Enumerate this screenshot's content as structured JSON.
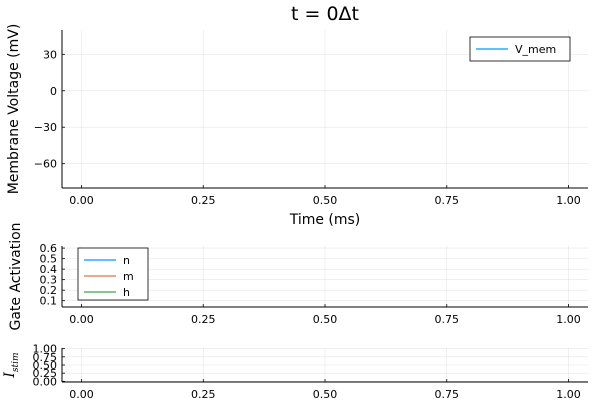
{
  "chart_data": [
    {
      "type": "line",
      "title": "t = 0Δt",
      "xlabel": "Time (ms)",
      "ylabel": "Membrane Voltage (mV)",
      "xlim": [
        -0.04,
        1.04
      ],
      "ylim": [
        -80,
        50
      ],
      "xticks": [
        0.0,
        0.25,
        0.5,
        0.75,
        1.0
      ],
      "xtick_labels": [
        "0.00",
        "0.25",
        "0.50",
        "0.75",
        "1.00"
      ],
      "yticks": [
        30,
        0,
        -30,
        -60
      ],
      "ytick_labels": [
        "30",
        "0",
        "−30",
        "−60"
      ],
      "grid": true,
      "legend_position": "top-right",
      "series": [
        {
          "name": "V_mem",
          "color": "#009af9",
          "x": [],
          "y": []
        }
      ]
    },
    {
      "type": "line",
      "title": "",
      "xlabel": "",
      "ylabel": "Gate Activation",
      "xlim": [
        -0.04,
        1.04
      ],
      "ylim": [
        0.04,
        0.62
      ],
      "xticks": [
        0.0,
        0.25,
        0.5,
        0.75,
        1.0
      ],
      "xtick_labels": [
        "0.00",
        "0.25",
        "0.50",
        "0.75",
        "1.00"
      ],
      "yticks": [
        0.6,
        0.5,
        0.4,
        0.3,
        0.2,
        0.1
      ],
      "ytick_labels": [
        "0.6",
        "0.5",
        "0.4",
        "0.3",
        "0.2",
        "0.1"
      ],
      "grid": true,
      "legend_position": "top-left",
      "series": [
        {
          "name": "n",
          "color": "#009af9",
          "x": [],
          "y": []
        },
        {
          "name": "m",
          "color": "#e26f46",
          "x": [],
          "y": []
        },
        {
          "name": "h",
          "color": "#3da44d",
          "x": [],
          "y": []
        }
      ]
    },
    {
      "type": "line",
      "title": "",
      "xlabel": "",
      "ylabel": "I",
      "ylabel_subscript": "stim",
      "xlim": [
        -0.04,
        1.04
      ],
      "ylim": [
        -0.02,
        1.02
      ],
      "xticks": [
        0.0,
        0.25,
        0.5,
        0.75,
        1.0
      ],
      "xtick_labels": [
        "0.00",
        "0.25",
        "0.50",
        "0.75",
        "1.00"
      ],
      "yticks": [
        1.0,
        0.75,
        0.5,
        0.25,
        0.0
      ],
      "ytick_labels": [
        "1.00",
        "0.75",
        "0.50",
        "0.25",
        "0.00"
      ],
      "grid": true,
      "legend_position": "none",
      "series": []
    }
  ]
}
